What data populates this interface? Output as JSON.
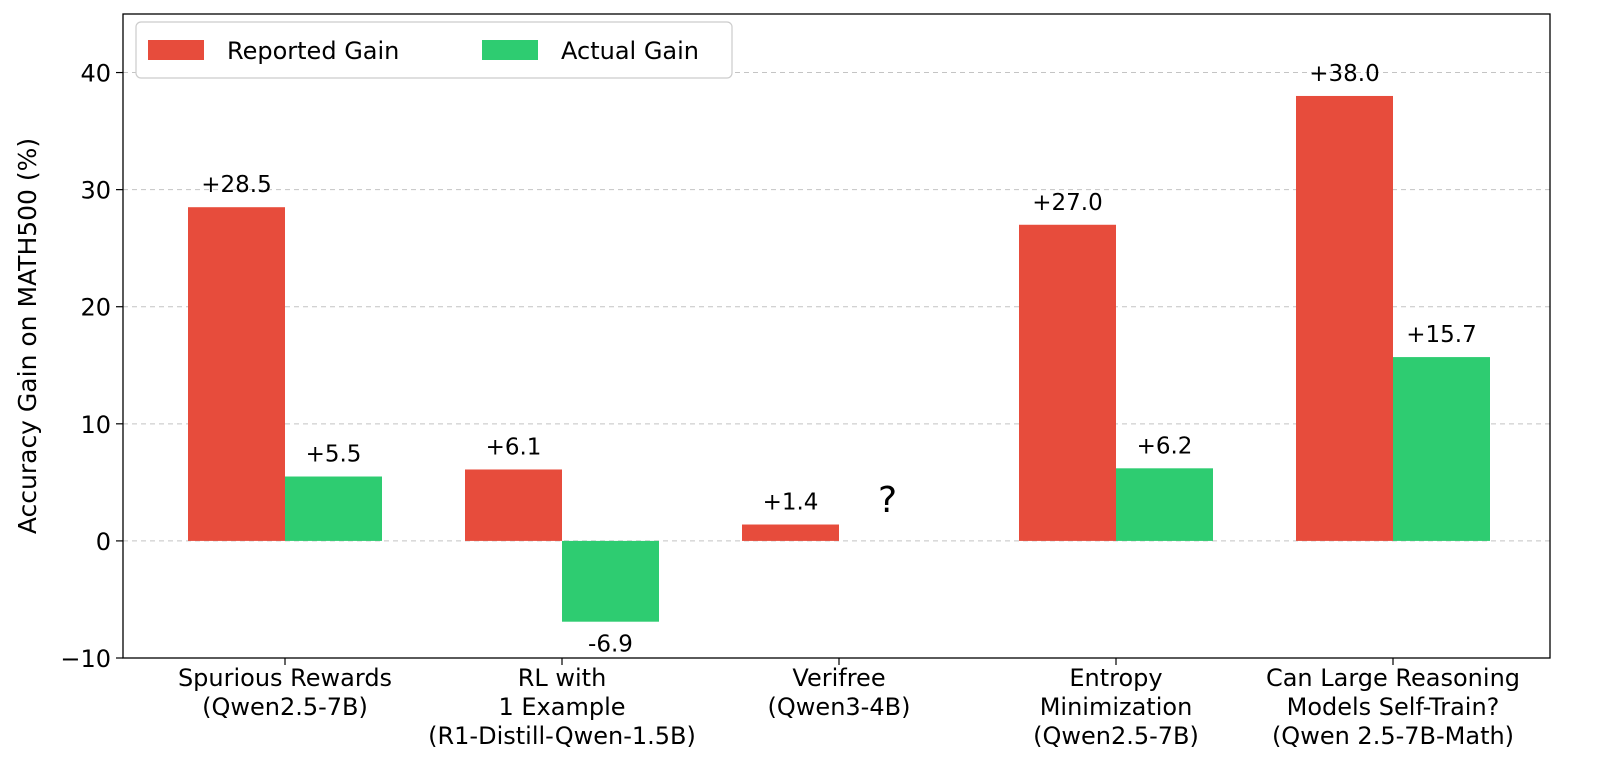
{
  "chart_data": {
    "type": "bar",
    "title": "",
    "xlabel": "",
    "ylabel": "Accuracy Gain on MATH500 (%)",
    "ylim": [
      -10,
      45
    ],
    "yticks": [
      -10,
      0,
      10,
      20,
      30,
      40
    ],
    "ytick_labels": [
      "−10",
      "0",
      "10",
      "20",
      "30",
      "40"
    ],
    "grid": "horizontal dashed",
    "legend_position": "top-left",
    "categories": [
      [
        "Spurious Rewards",
        "(Qwen2.5-7B)"
      ],
      [
        "RL with",
        "1 Example",
        "(R1-Distill-Qwen-1.5B)"
      ],
      [
        "Verifree",
        "(Qwen3-4B)"
      ],
      [
        "Entropy",
        "Minimization",
        "(Qwen2.5-7B)"
      ],
      [
        "Can Large Reasoning",
        "Models Self-Train?",
        "(Qwen 2.5-7B-Math)"
      ]
    ],
    "series": [
      {
        "name": "Reported Gain",
        "color": "#e74c3c",
        "values": [
          28.5,
          6.1,
          1.4,
          27.0,
          38.0
        ],
        "labels": [
          "+28.5",
          "+6.1",
          "+1.4",
          "+27.0",
          "+38.0"
        ]
      },
      {
        "name": "Actual Gain",
        "color": "#2ecc71",
        "values": [
          5.5,
          -6.9,
          null,
          6.2,
          15.7
        ],
        "labels": [
          "+5.5",
          "-6.9",
          "",
          "+6.2",
          "+15.7"
        ]
      }
    ],
    "annotations": [
      {
        "category_index": 2,
        "series": "Actual Gain",
        "text": "?"
      }
    ]
  }
}
